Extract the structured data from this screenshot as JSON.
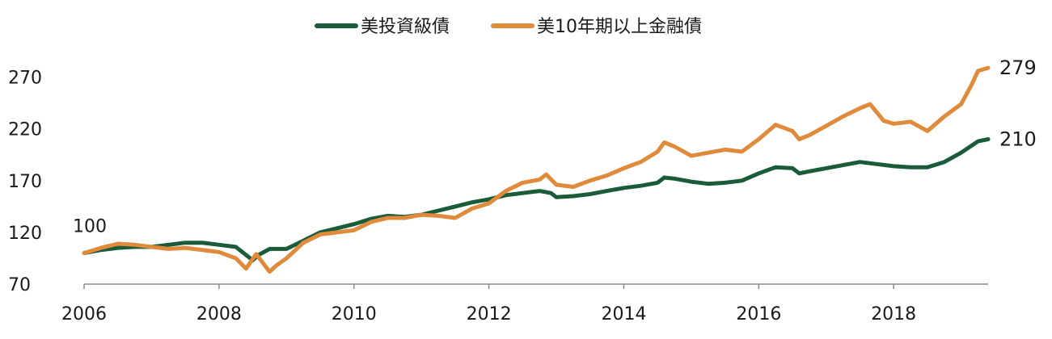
{
  "chart_data": {
    "type": "line",
    "title": "",
    "xlabel": "",
    "ylabel": "",
    "xlim": [
      2006,
      2019.4
    ],
    "ylim": [
      70,
      290
    ],
    "x_ticks": [
      2006,
      2008,
      2010,
      2012,
      2014,
      2016,
      2018
    ],
    "x_tick_labels": [
      "2006",
      "2008",
      "2010",
      "2012",
      "2014",
      "2016",
      "2018"
    ],
    "y_ticks": [
      70,
      120,
      170,
      220,
      270
    ],
    "y_tick_labels": [
      "70",
      "120",
      "170",
      "220",
      "270"
    ],
    "legend_position": "top-center",
    "grid": false,
    "start_label": "100",
    "series": [
      {
        "name": "美投資級債",
        "color": "#1a5c3a",
        "end_label": "210",
        "points": [
          [
            2006.0,
            100
          ],
          [
            2006.25,
            103
          ],
          [
            2006.5,
            105
          ],
          [
            2006.75,
            106
          ],
          [
            2007.0,
            106
          ],
          [
            2007.25,
            108
          ],
          [
            2007.5,
            110
          ],
          [
            2007.75,
            110
          ],
          [
            2008.0,
            108
          ],
          [
            2008.25,
            106
          ],
          [
            2008.5,
            93
          ],
          [
            2008.58,
            98
          ],
          [
            2008.75,
            104
          ],
          [
            2009.0,
            104
          ],
          [
            2009.25,
            112
          ],
          [
            2009.5,
            120
          ],
          [
            2009.75,
            124
          ],
          [
            2010.0,
            128
          ],
          [
            2010.25,
            133
          ],
          [
            2010.5,
            136
          ],
          [
            2010.75,
            135
          ],
          [
            2011.0,
            137
          ],
          [
            2011.25,
            141
          ],
          [
            2011.5,
            145
          ],
          [
            2011.75,
            149
          ],
          [
            2012.0,
            152
          ],
          [
            2012.25,
            156
          ],
          [
            2012.5,
            158
          ],
          [
            2012.75,
            160
          ],
          [
            2012.92,
            158
          ],
          [
            2013.0,
            154
          ],
          [
            2013.25,
            155
          ],
          [
            2013.5,
            157
          ],
          [
            2013.75,
            160
          ],
          [
            2014.0,
            163
          ],
          [
            2014.25,
            165
          ],
          [
            2014.5,
            168
          ],
          [
            2014.6,
            173
          ],
          [
            2014.75,
            172
          ],
          [
            2015.0,
            169
          ],
          [
            2015.25,
            167
          ],
          [
            2015.5,
            168
          ],
          [
            2015.75,
            170
          ],
          [
            2016.0,
            177
          ],
          [
            2016.25,
            183
          ],
          [
            2016.5,
            182
          ],
          [
            2016.6,
            177
          ],
          [
            2016.75,
            179
          ],
          [
            2017.0,
            182
          ],
          [
            2017.25,
            185
          ],
          [
            2017.5,
            188
          ],
          [
            2017.75,
            186
          ],
          [
            2018.0,
            184
          ],
          [
            2018.25,
            183
          ],
          [
            2018.5,
            183
          ],
          [
            2018.75,
            188
          ],
          [
            2019.0,
            197
          ],
          [
            2019.25,
            208
          ],
          [
            2019.4,
            210
          ]
        ]
      },
      {
        "name": "美10年期以上金融債",
        "color": "#e08a3c",
        "end_label": "279",
        "points": [
          [
            2006.0,
            100
          ],
          [
            2006.25,
            105
          ],
          [
            2006.5,
            109
          ],
          [
            2006.75,
            108
          ],
          [
            2007.0,
            106
          ],
          [
            2007.25,
            104
          ],
          [
            2007.5,
            105
          ],
          [
            2007.75,
            103
          ],
          [
            2008.0,
            101
          ],
          [
            2008.25,
            95
          ],
          [
            2008.4,
            85
          ],
          [
            2008.55,
            99
          ],
          [
            2008.75,
            82
          ],
          [
            2008.85,
            88
          ],
          [
            2009.0,
            95
          ],
          [
            2009.25,
            110
          ],
          [
            2009.5,
            118
          ],
          [
            2009.75,
            120
          ],
          [
            2010.0,
            122
          ],
          [
            2010.25,
            130
          ],
          [
            2010.5,
            134
          ],
          [
            2010.75,
            134
          ],
          [
            2011.0,
            137
          ],
          [
            2011.25,
            136
          ],
          [
            2011.5,
            134
          ],
          [
            2011.75,
            143
          ],
          [
            2012.0,
            148
          ],
          [
            2012.25,
            160
          ],
          [
            2012.5,
            168
          ],
          [
            2012.75,
            171
          ],
          [
            2012.85,
            176
          ],
          [
            2013.0,
            166
          ],
          [
            2013.25,
            164
          ],
          [
            2013.5,
            170
          ],
          [
            2013.75,
            175
          ],
          [
            2014.0,
            182
          ],
          [
            2014.25,
            188
          ],
          [
            2014.5,
            198
          ],
          [
            2014.6,
            207
          ],
          [
            2014.75,
            203
          ],
          [
            2015.0,
            194
          ],
          [
            2015.25,
            197
          ],
          [
            2015.5,
            200
          ],
          [
            2015.75,
            198
          ],
          [
            2016.0,
            210
          ],
          [
            2016.25,
            224
          ],
          [
            2016.5,
            218
          ],
          [
            2016.6,
            210
          ],
          [
            2016.75,
            214
          ],
          [
            2017.0,
            223
          ],
          [
            2017.25,
            232
          ],
          [
            2017.5,
            240
          ],
          [
            2017.65,
            244
          ],
          [
            2017.85,
            228
          ],
          [
            2018.0,
            225
          ],
          [
            2018.25,
            227
          ],
          [
            2018.5,
            218
          ],
          [
            2018.75,
            232
          ],
          [
            2019.0,
            244
          ],
          [
            2019.15,
            262
          ],
          [
            2019.25,
            276
          ],
          [
            2019.4,
            279
          ]
        ]
      }
    ]
  }
}
